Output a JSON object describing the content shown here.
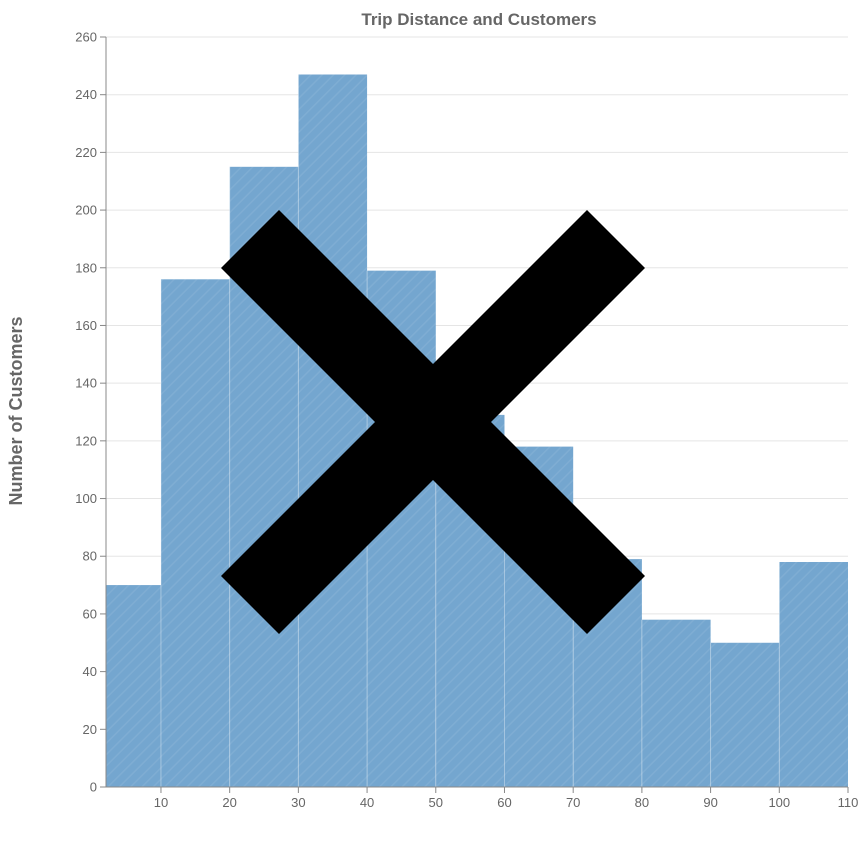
{
  "chart_data": {
    "type": "bar",
    "title": "Trip Distance and Customers",
    "xlabel": "",
    "ylabel": "Number of Customers",
    "x_ticks": [
      10,
      20,
      30,
      40,
      50,
      60,
      70,
      80,
      90,
      100,
      110
    ],
    "y_ticks": [
      0,
      20,
      40,
      60,
      80,
      100,
      120,
      140,
      160,
      180,
      200,
      220,
      240,
      260
    ],
    "xlim": [
      2,
      110
    ],
    "ylim": [
      0,
      260
    ],
    "bins": [
      {
        "x0": 2,
        "x1": 10,
        "value": 70
      },
      {
        "x0": 10,
        "x1": 20,
        "value": 176
      },
      {
        "x0": 20,
        "x1": 30,
        "value": 215
      },
      {
        "x0": 30,
        "x1": 40,
        "value": 247
      },
      {
        "x0": 40,
        "x1": 50,
        "value": 179
      },
      {
        "x0": 50,
        "x1": 60,
        "value": 129
      },
      {
        "x0": 60,
        "x1": 70,
        "value": 118
      },
      {
        "x0": 70,
        "x1": 80,
        "value": 79
      },
      {
        "x0": 80,
        "x1": 90,
        "value": 58
      },
      {
        "x0": 90,
        "x1": 100,
        "value": 50
      },
      {
        "x0": 100,
        "x1": 110,
        "value": 78
      }
    ],
    "bar_color": "#74a6cf",
    "grid": true,
    "legend": "none"
  },
  "overlay": {
    "mark": "x-cross",
    "color": "#000000"
  }
}
